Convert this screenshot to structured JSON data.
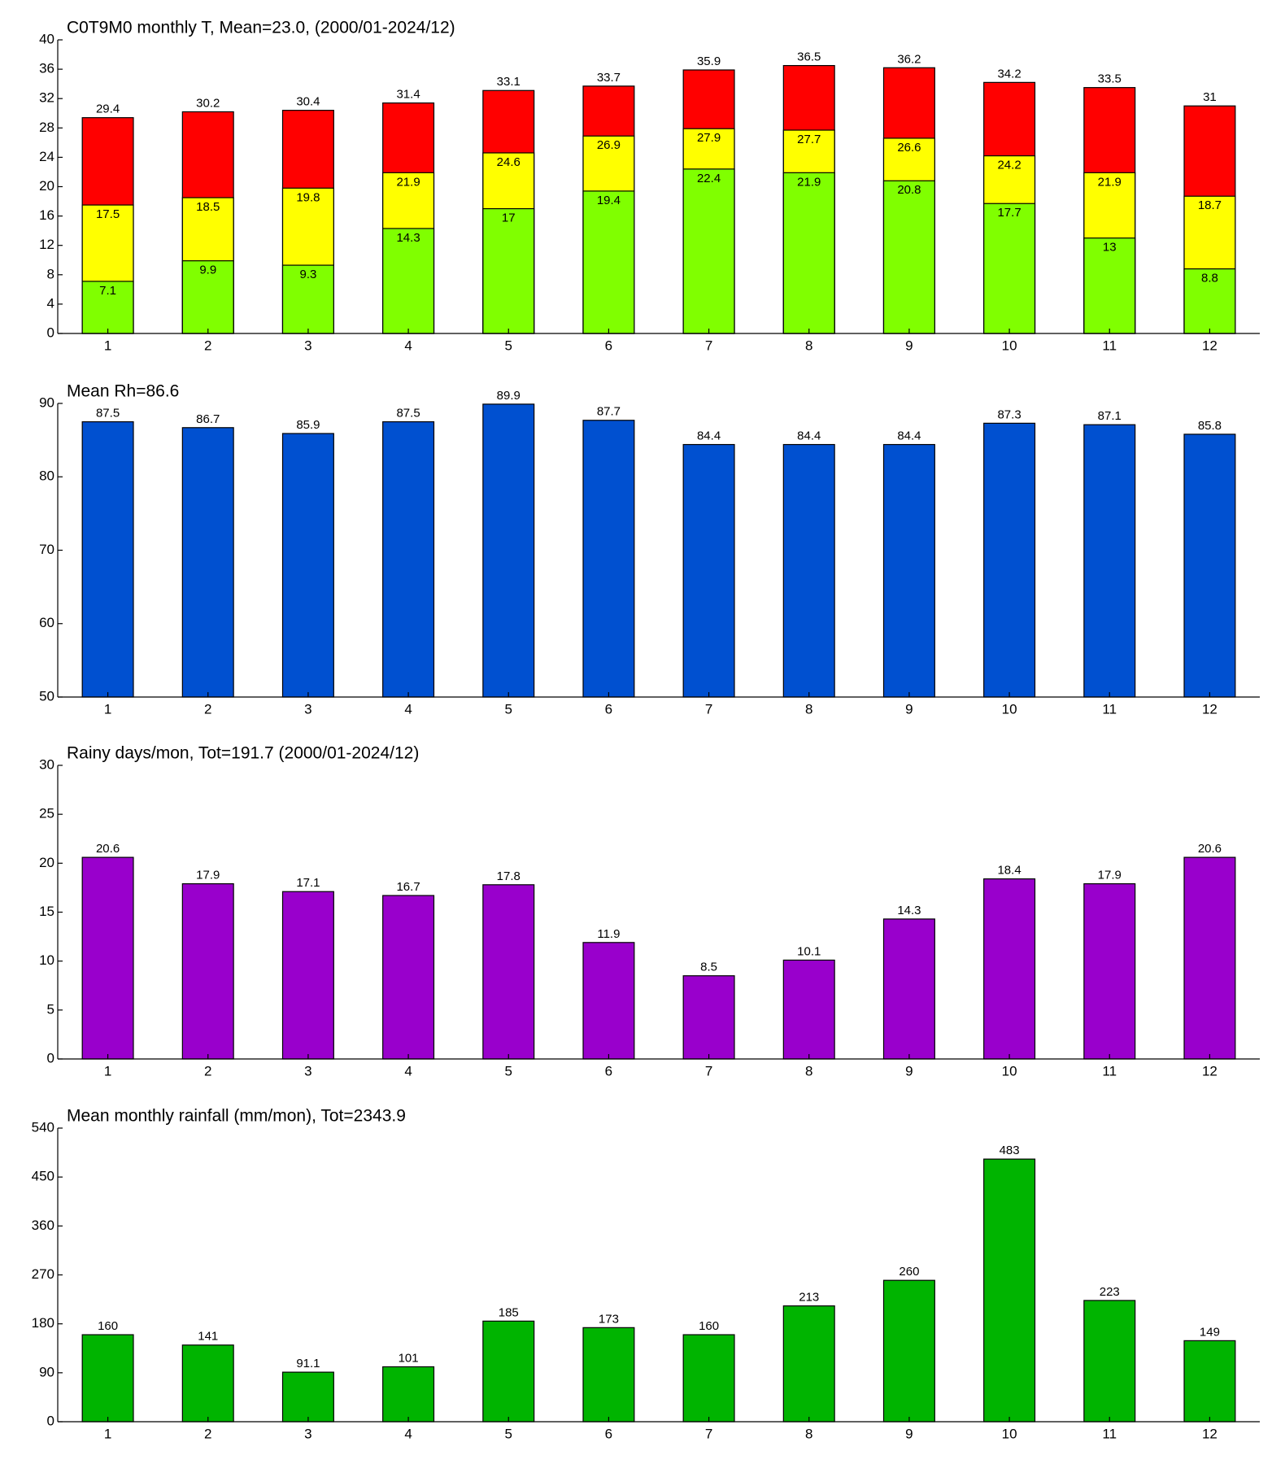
{
  "chart_data": [
    {
      "type": "bar",
      "title": "C0T9M0 monthly T, Mean=23.0, (2000/01-2024/12)",
      "categories": [
        "1",
        "2",
        "3",
        "4",
        "5",
        "6",
        "7",
        "8",
        "9",
        "10",
        "11",
        "12"
      ],
      "series": [
        {
          "color": "#ff0000",
          "values": [
            29.4,
            30.2,
            30.4,
            31.4,
            33.1,
            33.7,
            35.9,
            36.5,
            36.2,
            34.2,
            33.5,
            31
          ]
        },
        {
          "color": "#ffff00",
          "values": [
            17.5,
            18.5,
            19.8,
            21.9,
            24.6,
            26.9,
            27.9,
            27.7,
            26.6,
            24.2,
            21.9,
            18.7
          ]
        },
        {
          "color": "#80ff00",
          "values": [
            7.1,
            9.9,
            9.3,
            14.3,
            17,
            19.4,
            22.4,
            21.9,
            20.8,
            17.7,
            13,
            8.8
          ]
        }
      ],
      "ylim": [
        0,
        40
      ],
      "yticks": [
        0,
        4,
        8,
        12,
        16,
        20,
        24,
        28,
        32,
        36,
        40
      ]
    },
    {
      "type": "bar",
      "title": "Mean Rh=86.6",
      "categories": [
        "1",
        "2",
        "3",
        "4",
        "5",
        "6",
        "7",
        "8",
        "9",
        "10",
        "11",
        "12"
      ],
      "series": [
        {
          "color": "#0050d0",
          "values": [
            87.5,
            86.7,
            85.9,
            87.5,
            89.9,
            87.7,
            84.4,
            84.4,
            84.4,
            87.3,
            87.1,
            85.8
          ]
        }
      ],
      "ylim": [
        50,
        90
      ],
      "yticks": [
        50,
        60,
        70,
        80,
        90
      ]
    },
    {
      "type": "bar",
      "title": "Rainy days/mon, Tot=191.7 (2000/01-2024/12)",
      "categories": [
        "1",
        "2",
        "3",
        "4",
        "5",
        "6",
        "7",
        "8",
        "9",
        "10",
        "11",
        "12"
      ],
      "series": [
        {
          "color": "#9900cc",
          "values": [
            20.6,
            17.9,
            17.1,
            16.7,
            17.8,
            11.9,
            8.5,
            10.1,
            14.3,
            18.4,
            17.9,
            20.6
          ]
        }
      ],
      "ylim": [
        0,
        30
      ],
      "yticks": [
        0,
        5,
        10,
        15,
        20,
        25,
        30
      ]
    },
    {
      "type": "bar",
      "title": "Mean monthly rainfall (mm/mon), Tot=2343.9",
      "categories": [
        "1",
        "2",
        "3",
        "4",
        "5",
        "6",
        "7",
        "8",
        "9",
        "10",
        "11",
        "12"
      ],
      "series": [
        {
          "color": "#00b400",
          "values": [
            160,
            141,
            91.1,
            101,
            185,
            173,
            160,
            213,
            260,
            483,
            223,
            149
          ]
        }
      ],
      "ylim": [
        0,
        540
      ],
      "yticks": [
        0,
        90,
        180,
        270,
        360,
        450,
        540
      ]
    }
  ]
}
